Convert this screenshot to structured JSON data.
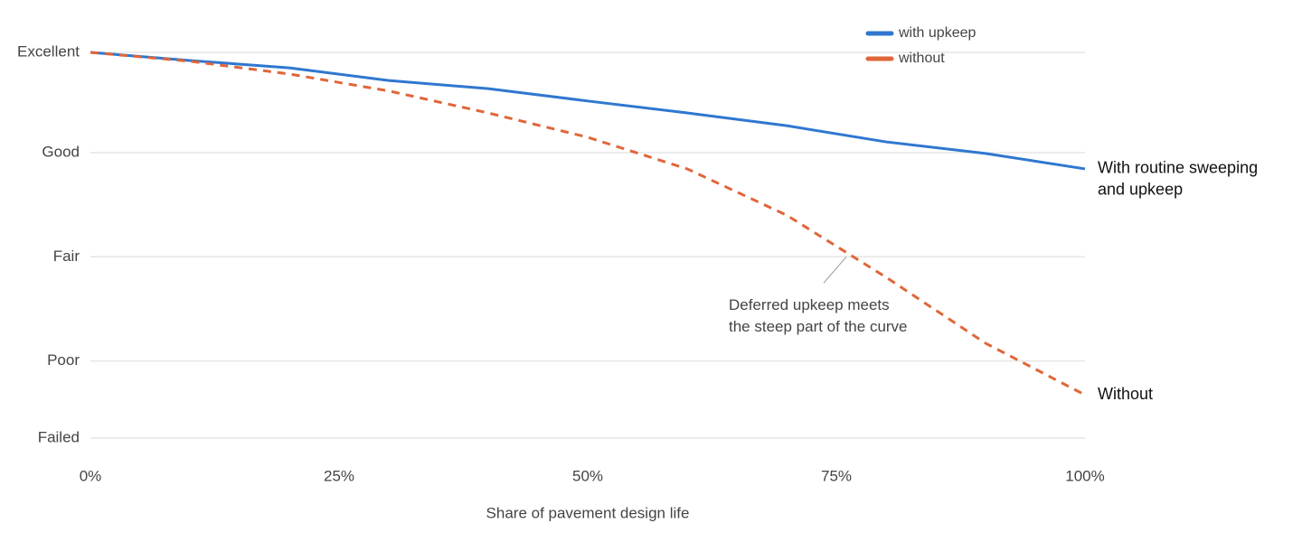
{
  "chart_data": {
    "type": "line",
    "x_label": "Share of pavement design life",
    "x": [
      0,
      10,
      20,
      30,
      40,
      50,
      60,
      70,
      80,
      90,
      100
    ],
    "xlim": [
      0,
      100
    ],
    "xticks": [
      {
        "value": 0,
        "label": "0%"
      },
      {
        "value": 25,
        "label": "25%"
      },
      {
        "value": 50,
        "label": "50%"
      },
      {
        "value": 75,
        "label": "75%"
      },
      {
        "value": 100,
        "label": "100%"
      }
    ],
    "ylim": [
      0,
      100
    ],
    "yticks": [
      {
        "value": 0,
        "label": "Failed"
      },
      {
        "value": 20,
        "label": "Poor"
      },
      {
        "value": 47,
        "label": "Fair"
      },
      {
        "value": 74,
        "label": "Good"
      },
      {
        "value": 100,
        "label": "Excellent"
      }
    ],
    "grid": true,
    "legend": "top-right",
    "series": [
      {
        "name": "with upkeep",
        "color": "#2f77d0",
        "dashed": false,
        "end_label": [
          "With routine sweeping",
          "and upkeep"
        ],
        "values": [
          100,
          97.9,
          96.0,
          92.7,
          90.6,
          87.4,
          84.3,
          81.0,
          76.8,
          73.8,
          69.8
        ]
      },
      {
        "name": "without",
        "color": "#e0663a",
        "dashed": true,
        "end_label": [
          "Without"
        ],
        "values": [
          100,
          97.7,
          94.4,
          90.0,
          84.3,
          78.0,
          69.8,
          57.8,
          41.7,
          24.6,
          11.2
        ]
      }
    ],
    "annotation": {
      "text": [
        "Deferred upkeep meets",
        "the steep part of the curve"
      ],
      "x": 76,
      "y": 47
    }
  }
}
